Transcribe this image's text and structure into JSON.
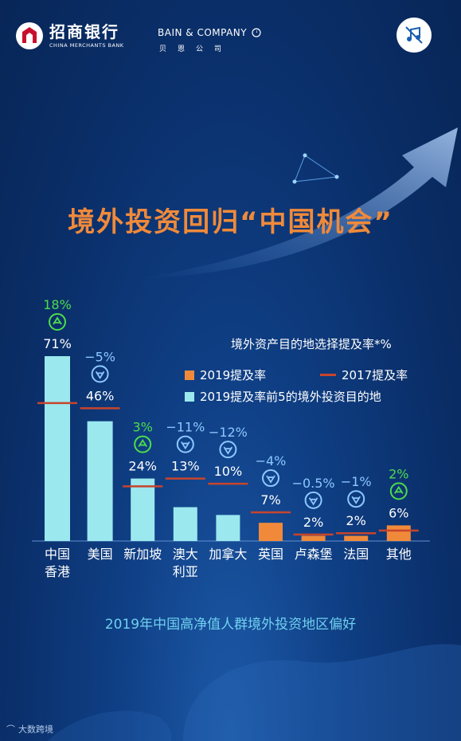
{
  "header": {
    "cmb_name": "招商银行",
    "cmb_en": "CHINA MERCHANTS BANK",
    "bain_name": "BAIN & COMPANY",
    "bain_cn": "贝恩公司"
  },
  "headline": "境外投资回归“中国机会”",
  "footer_title": "2019年中国高净值人群境外投资地区偏好",
  "watermark": "大数跨境",
  "colors": {
    "bar_top5": "#9be8ef",
    "bar_other": "#f08a3a",
    "line_2017": "#c8452c",
    "up": "#4ddc4d",
    "down": "#8cc8ff"
  },
  "chart_data": {
    "type": "bar",
    "title": "境外资产目的地选择提及率*%",
    "legend": [
      "2019提及率",
      "2017提及率",
      "2019提及率前5的境外投资目的地"
    ],
    "categories": [
      "中国\n香港",
      "美国",
      "新加坡",
      "澳大\n利亚",
      "加拿大",
      "英国",
      "卢森堡",
      "法国",
      "其他"
    ],
    "series": [
      {
        "name": "2019提及率",
        "values": [
          71,
          46,
          24,
          13,
          10,
          7,
          2,
          2,
          6
        ],
        "labels": [
          "71%",
          "46%",
          "24%",
          "13%",
          "10%",
          "7%",
          "2%",
          "2%",
          "6%"
        ]
      },
      {
        "name": "2017提及率",
        "values": [
          53,
          51,
          21,
          24,
          22,
          11,
          2.5,
          3,
          4
        ]
      }
    ],
    "top5": [
      true,
      true,
      true,
      true,
      true,
      false,
      false,
      false,
      false
    ],
    "change": [
      "18%",
      "-5%",
      "3%",
      "-11%",
      "-12%",
      "-4%",
      "-0.5%",
      "-1%",
      "2%"
    ],
    "change_dir": [
      "up",
      "down",
      "up",
      "down",
      "down",
      "down",
      "down",
      "down",
      "up"
    ],
    "ylim": [
      0,
      75
    ]
  }
}
